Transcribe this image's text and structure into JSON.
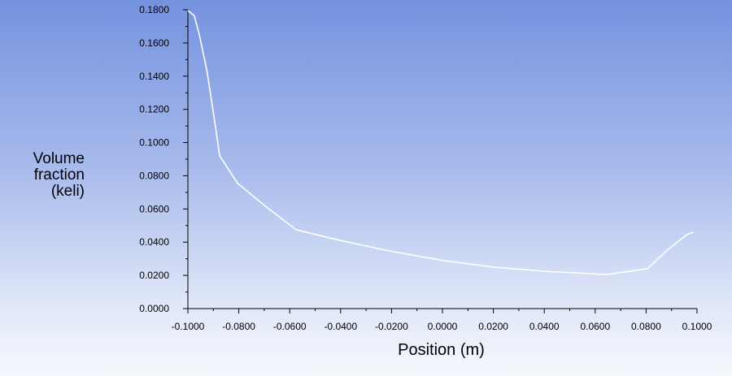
{
  "chart_data": {
    "type": "line",
    "title": "",
    "xlabel": "Position (m)",
    "ylabel_lines": [
      "Volume",
      "fraction",
      "(keli)"
    ],
    "xlim": [
      -0.1,
      0.1
    ],
    "ylim": [
      0,
      0.18
    ],
    "xticks": [
      "-0.1000",
      "-0.0800",
      "-0.0600",
      "-0.0400",
      "-0.0200",
      "0.0000",
      "0.0200",
      "0.0400",
      "0.0600",
      "0.0800",
      "0.1000"
    ],
    "yticks": [
      "0.0000",
      "0.0200",
      "0.0400",
      "0.0600",
      "0.0800",
      "0.1000",
      "0.1200",
      "0.1400",
      "0.1600",
      "0.1800"
    ],
    "grid": false,
    "line_color": "#ffffff",
    "series": [
      {
        "x": [
          -0.1,
          -0.0975,
          -0.0955,
          -0.0925,
          -0.0895,
          -0.0875,
          -0.0805,
          -0.069,
          -0.0575,
          -0.04,
          -0.02,
          0.0,
          0.02,
          0.04,
          0.0645,
          0.0805,
          0.0885,
          0.096,
          0.0985
        ],
        "y": [
          0.1795,
          0.1765,
          0.165,
          0.143,
          0.113,
          0.092,
          0.0755,
          0.061,
          0.0475,
          0.041,
          0.0345,
          0.029,
          0.025,
          0.0225,
          0.0205,
          0.024,
          0.0355,
          0.0445,
          0.046
        ]
      }
    ]
  }
}
